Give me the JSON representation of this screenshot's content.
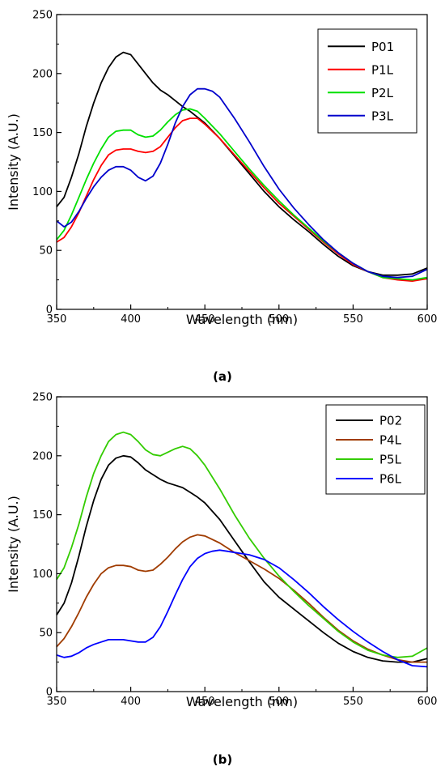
{
  "chart_data": [
    {
      "type": "line",
      "panel_label": "(a)",
      "title": "",
      "xlabel": "Wavelength (nm)",
      "ylabel": "Intensity (A.U.)",
      "xlim": [
        350,
        600
      ],
      "ylim": [
        0,
        250
      ],
      "xticks": [
        350,
        400,
        450,
        500,
        550,
        600
      ],
      "yticks": [
        0,
        50,
        100,
        150,
        200,
        250
      ],
      "grid": false,
      "legend_position": "top-right",
      "series": [
        {
          "name": "P01",
          "color": "#000000",
          "x": [
            350,
            355,
            360,
            365,
            370,
            375,
            380,
            385,
            390,
            395,
            400,
            405,
            410,
            415,
            420,
            425,
            430,
            435,
            440,
            445,
            450,
            460,
            470,
            480,
            490,
            500,
            510,
            520,
            530,
            540,
            550,
            560,
            570,
            580,
            590,
            600
          ],
          "y": [
            87,
            95,
            112,
            132,
            155,
            175,
            192,
            205,
            214,
            218,
            216,
            208,
            200,
            192,
            186,
            182,
            177,
            172,
            168,
            163,
            158,
            145,
            130,
            115,
            100,
            87,
            76,
            66,
            55,
            45,
            37,
            32,
            29,
            29,
            30,
            35
          ]
        },
        {
          "name": "P1L",
          "color": "#ff0000",
          "x": [
            350,
            355,
            360,
            365,
            370,
            375,
            380,
            385,
            390,
            395,
            400,
            405,
            410,
            415,
            420,
            425,
            430,
            435,
            440,
            445,
            450,
            460,
            470,
            480,
            490,
            500,
            510,
            520,
            530,
            540,
            550,
            560,
            570,
            580,
            590,
            600
          ],
          "y": [
            57,
            61,
            70,
            82,
            96,
            110,
            122,
            131,
            135,
            136,
            136,
            134,
            133,
            134,
            138,
            146,
            154,
            160,
            162,
            162,
            157,
            145,
            131,
            117,
            103,
            90,
            79,
            68,
            57,
            47,
            38,
            32,
            27,
            25,
            24,
            26
          ]
        },
        {
          "name": "P2L",
          "color": "#00e000",
          "x": [
            350,
            355,
            360,
            365,
            370,
            375,
            380,
            385,
            390,
            395,
            400,
            405,
            410,
            415,
            420,
            425,
            430,
            435,
            440,
            445,
            450,
            460,
            470,
            480,
            490,
            500,
            510,
            520,
            530,
            540,
            550,
            560,
            570,
            580,
            590,
            600
          ],
          "y": [
            59,
            67,
            80,
            95,
            110,
            124,
            136,
            146,
            151,
            152,
            152,
            148,
            146,
            147,
            152,
            159,
            165,
            169,
            170,
            168,
            162,
            149,
            134,
            119,
            105,
            92,
            80,
            69,
            58,
            48,
            39,
            32,
            27,
            26,
            25,
            27
          ]
        },
        {
          "name": "P3L",
          "color": "#0000cc",
          "x": [
            350,
            355,
            360,
            365,
            370,
            375,
            380,
            385,
            390,
            395,
            400,
            405,
            410,
            415,
            420,
            425,
            430,
            435,
            440,
            445,
            450,
            455,
            460,
            470,
            480,
            490,
            500,
            510,
            520,
            530,
            540,
            550,
            560,
            570,
            580,
            590,
            600
          ],
          "y": [
            75,
            70,
            74,
            83,
            94,
            104,
            112,
            118,
            121,
            121,
            118,
            112,
            109,
            113,
            124,
            140,
            158,
            172,
            182,
            187,
            187,
            185,
            180,
            162,
            142,
            121,
            102,
            86,
            72,
            59,
            48,
            39,
            32,
            28,
            27,
            28,
            34
          ]
        }
      ]
    },
    {
      "type": "line",
      "panel_label": "(b)",
      "title": "",
      "xlabel": "Wavelength (nm)",
      "ylabel": "Intensity (A.U.)",
      "xlim": [
        350,
        600
      ],
      "ylim": [
        0,
        250
      ],
      "xticks": [
        350,
        400,
        450,
        500,
        550,
        600
      ],
      "yticks": [
        0,
        50,
        100,
        150,
        200,
        250
      ],
      "grid": false,
      "legend_position": "top-right",
      "series": [
        {
          "name": "P02",
          "color": "#000000",
          "x": [
            350,
            355,
            360,
            365,
            370,
            375,
            380,
            385,
            390,
            395,
            400,
            405,
            410,
            415,
            420,
            425,
            430,
            435,
            440,
            445,
            450,
            460,
            470,
            480,
            490,
            500,
            510,
            520,
            530,
            540,
            550,
            560,
            570,
            580,
            590,
            600
          ],
          "y": [
            65,
            75,
            92,
            115,
            140,
            162,
            180,
            192,
            198,
            200,
            199,
            194,
            188,
            184,
            180,
            177,
            175,
            173,
            169,
            165,
            160,
            146,
            128,
            110,
            93,
            80,
            70,
            60,
            50,
            41,
            34,
            29,
            26,
            25,
            25,
            28
          ]
        },
        {
          "name": "P4L",
          "color": "#a03c00",
          "x": [
            350,
            355,
            360,
            365,
            370,
            375,
            380,
            385,
            390,
            395,
            400,
            405,
            410,
            415,
            420,
            425,
            430,
            435,
            440,
            445,
            450,
            460,
            470,
            480,
            490,
            500,
            510,
            520,
            530,
            540,
            550,
            560,
            570,
            580,
            590,
            600
          ],
          "y": [
            38,
            45,
            55,
            67,
            80,
            91,
            100,
            105,
            107,
            107,
            106,
            103,
            102,
            103,
            108,
            114,
            121,
            127,
            131,
            133,
            132,
            126,
            118,
            111,
            104,
            96,
            86,
            75,
            63,
            52,
            43,
            36,
            31,
            27,
            25,
            25
          ]
        },
        {
          "name": "P5L",
          "color": "#33cc00",
          "x": [
            350,
            355,
            360,
            365,
            370,
            375,
            380,
            385,
            390,
            395,
            400,
            405,
            410,
            415,
            420,
            425,
            430,
            435,
            440,
            445,
            450,
            460,
            470,
            480,
            490,
            500,
            510,
            520,
            530,
            540,
            550,
            560,
            570,
            580,
            590,
            600
          ],
          "y": [
            95,
            105,
            122,
            142,
            165,
            185,
            200,
            212,
            218,
            220,
            218,
            212,
            205,
            201,
            200,
            203,
            206,
            208,
            206,
            200,
            192,
            172,
            150,
            130,
            113,
            98,
            85,
            73,
            62,
            51,
            42,
            35,
            31,
            29,
            30,
            37
          ]
        },
        {
          "name": "P6L",
          "color": "#0000ff",
          "x": [
            350,
            355,
            360,
            365,
            370,
            375,
            380,
            385,
            390,
            395,
            400,
            405,
            410,
            415,
            420,
            425,
            430,
            435,
            440,
            445,
            450,
            455,
            460,
            465,
            470,
            475,
            480,
            490,
            500,
            510,
            520,
            530,
            540,
            550,
            560,
            570,
            580,
            590,
            600
          ],
          "y": [
            31,
            29,
            30,
            33,
            37,
            40,
            42,
            44,
            44,
            44,
            43,
            42,
            42,
            46,
            55,
            68,
            82,
            95,
            106,
            113,
            117,
            119,
            120,
            119,
            118,
            117,
            116,
            112,
            105,
            95,
            84,
            72,
            61,
            51,
            42,
            34,
            27,
            22,
            21
          ]
        }
      ]
    }
  ]
}
